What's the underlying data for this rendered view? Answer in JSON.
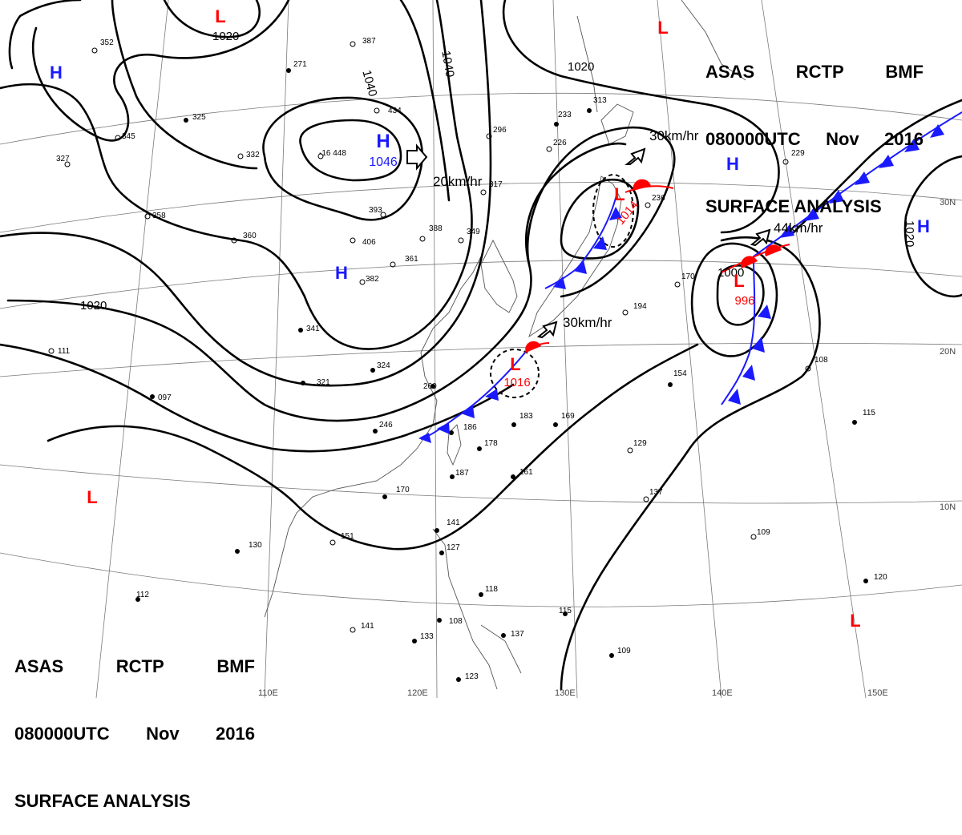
{
  "header": {
    "product": [
      "ASAS",
      "RCTP",
      "BMF"
    ],
    "valid_time": [
      "080000UTC",
      "Nov",
      "2016"
    ],
    "title": "SURFACE ANALYSIS"
  },
  "pressure_systems": [
    {
      "type": "H",
      "value": "1046",
      "color": "#1a1aff"
    },
    {
      "type": "L",
      "value": "1014",
      "color": "#ff0000"
    },
    {
      "type": "L",
      "value": "1016",
      "color": "#ff0000"
    },
    {
      "type": "L",
      "value": "996",
      "color": "#ff0000"
    },
    {
      "type": "H",
      "value": "",
      "color": "#1a1aff"
    },
    {
      "type": "H",
      "value": "",
      "color": "#1a1aff"
    },
    {
      "type": "H",
      "value": "",
      "color": "#1a1aff"
    },
    {
      "type": "H",
      "value": "",
      "color": "#1a1aff"
    },
    {
      "type": "L",
      "value": "",
      "color": "#ff0000"
    },
    {
      "type": "L",
      "value": "",
      "color": "#ff0000"
    },
    {
      "type": "L",
      "value": "",
      "color": "#ff0000"
    },
    {
      "type": "L",
      "value": "",
      "color": "#ff0000"
    }
  ],
  "isobar_labels": [
    "1020",
    "1040",
    "1040",
    "1020",
    "1020",
    "1020",
    "1000"
  ],
  "motion_labels": [
    "20km/hr",
    "30km/hr",
    "30km/hr",
    "44km/hr"
  ],
  "latitude_labels": [
    "30N",
    "20N",
    "10N"
  ],
  "longitude_labels": [
    "110E",
    "120E",
    "130E",
    "140E",
    "150E"
  ],
  "station_values": [
    "-16 448",
    "393",
    "406",
    "361",
    "382",
    "388",
    "349",
    "317",
    "296",
    "434",
    "387",
    "324",
    "321",
    "260",
    "246",
    "186",
    "178",
    "187",
    "170",
    "183",
    "169",
    "161",
    "141",
    "127",
    "118",
    "108",
    "137",
    "115",
    "129",
    "137",
    "109",
    "120",
    "130",
    "151",
    "112",
    "141",
    "133",
    "123",
    "109",
    "115",
    "108",
    "154",
    "170",
    "194",
    "236",
    "229",
    "313",
    "233",
    "226",
    "360",
    "358",
    "327",
    "345",
    "352",
    "271",
    "325",
    "332",
    "097",
    "111",
    "341"
  ],
  "colors": {
    "high": "#1a1aff",
    "low": "#ff0000",
    "cold_front": "#1a1aff",
    "warm_front": "#ff0000",
    "isobar": "#000000"
  }
}
